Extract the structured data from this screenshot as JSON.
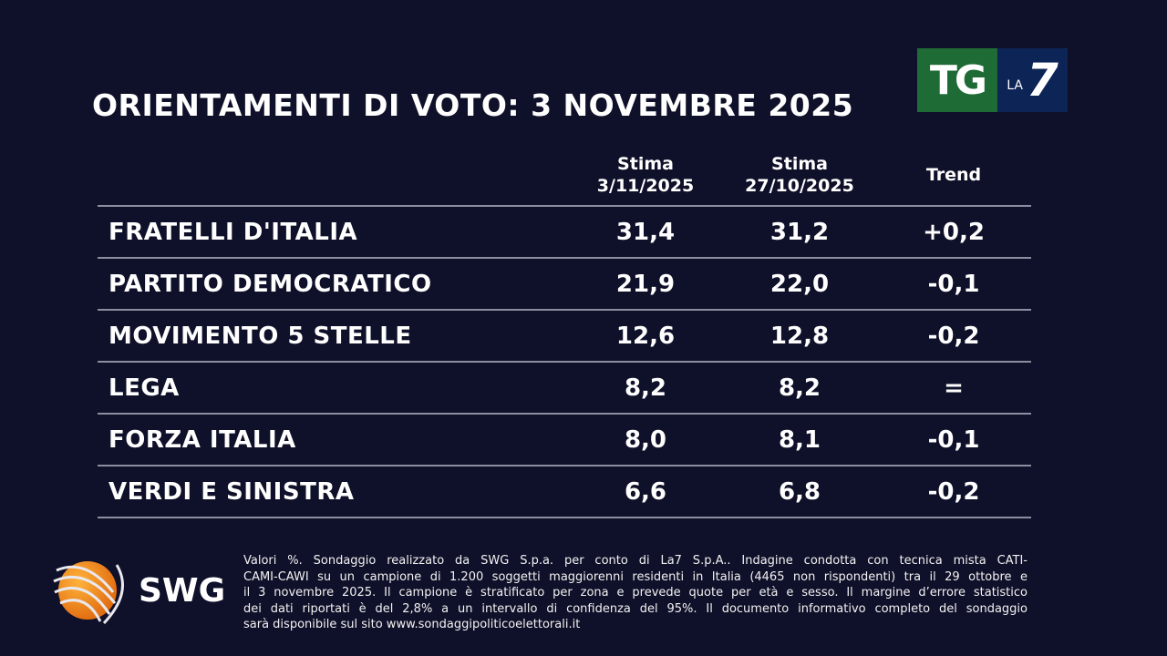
{
  "title": "ORIENTAMENTI DI VOTO: 3 NOVEMBRE 2025",
  "logo": {
    "tg": "TG",
    "la": "LA",
    "seven": "7",
    "colors": {
      "green": "#1f6b36",
      "blue": "#0d2456"
    }
  },
  "columns": [
    {
      "line1": "Stima",
      "line2": "3/11/2025"
    },
    {
      "line1": "Stima",
      "line2": "27/10/2025"
    },
    {
      "line1": "",
      "line2": "Trend"
    }
  ],
  "rows": [
    {
      "party": "FRATELLI D'ITALIA",
      "current": "31,4",
      "previous": "31,2",
      "trend": "+0,2"
    },
    {
      "party": "PARTITO DEMOCRATICO",
      "current": "21,9",
      "previous": "22,0",
      "trend": "-0,1"
    },
    {
      "party": "MOVIMENTO 5 STELLE",
      "current": "12,6",
      "previous": "12,8",
      "trend": "-0,2"
    },
    {
      "party": "LEGA",
      "current": "8,2",
      "previous": "8,2",
      "trend": "="
    },
    {
      "party": "FORZA ITALIA",
      "current": "8,0",
      "previous": "8,1",
      "trend": "-0,1"
    },
    {
      "party": "VERDI E SINISTRA",
      "current": "6,6",
      "previous": "6,8",
      "trend": "-0,2"
    }
  ],
  "swg_logo": "SWG",
  "note_lines": [
    "Valori %. Sondaggio realizzato da SWG S.p.a. per conto di La7 S.p.A.. Indagine condotta con tecnica mista CATI-",
    "CAMI-CAWI su un campione di 1.200 soggetti maggiorenni residenti in Italia (4465 non rispondenti) tra il 29 ottobre e",
    "il 3 novembre 2025. Il campione è stratificato per zona e prevede quote per età e sesso. Il margine d’errore statistico",
    "dei dati riportati è del 2,8% a un intervallo di confidenza del 95%. Il documento informativo completo del sondaggio",
    "sarà disponibile sul sito www.sondaggipoliticoelettorali.it"
  ]
}
